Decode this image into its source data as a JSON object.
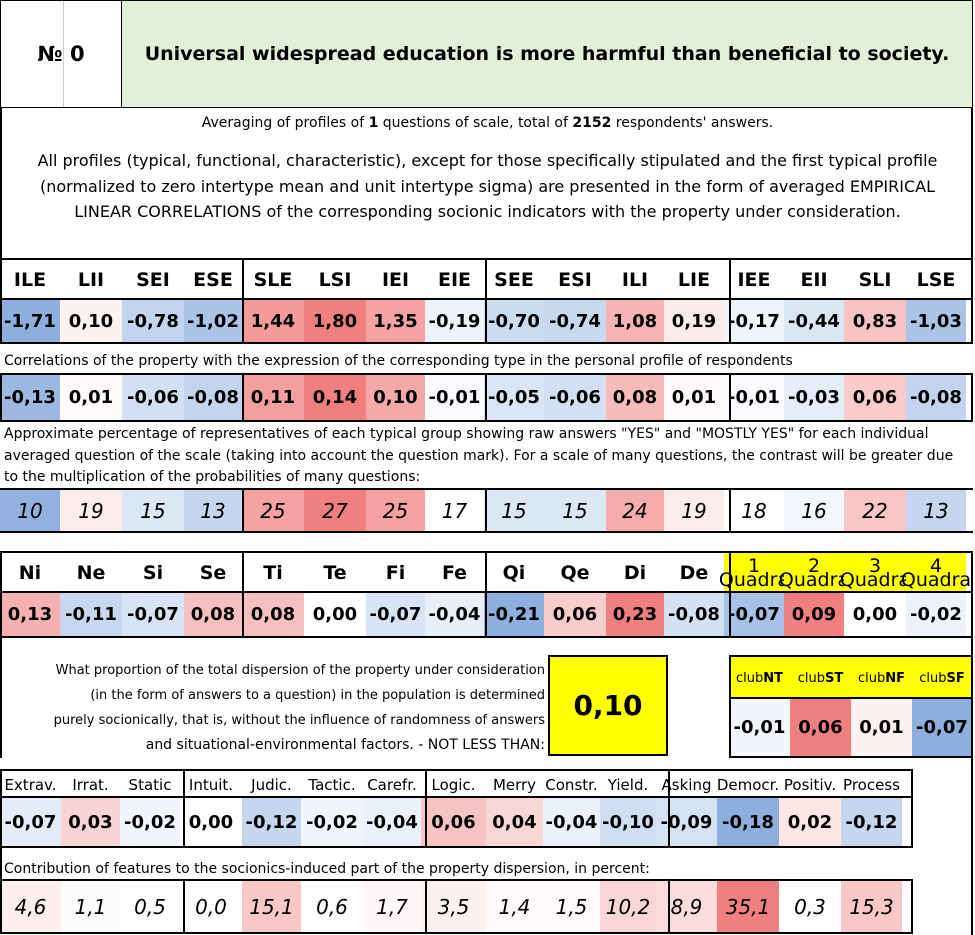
{
  "header": {
    "number_label": "№ 0",
    "title": "Universal widespread education is more harmful than beneficial to society."
  },
  "averaging": {
    "prefix": "Averaging of profiles of ",
    "questions": "1",
    "middle": " questions of scale, total of ",
    "respondents": "2152",
    "suffix": " respondents' answers."
  },
  "description": "All profiles (typical, functional, characteristic), except for those specifically stipulated and the first typical profile (normalized to zero intertype mean and unit intertype sigma) are presented in the form of averaged EMPIRICAL LINEAR CORRELATIONS of the corresponding socionic indicators with the property under consideration.",
  "types": {
    "labels": [
      "ILE",
      "LII",
      "SEI",
      "ESE",
      "SLE",
      "LSI",
      "IEI",
      "EIE",
      "SEE",
      "ESI",
      "ILI",
      "LIE",
      "IEE",
      "EII",
      "SLI",
      "LSE"
    ],
    "normalized": [
      "-1,71",
      "0,10",
      "-0,78",
      "-1,02",
      "1,44",
      "1,80",
      "1,35",
      "-0,19",
      "-0,70",
      "-0,74",
      "1,08",
      "0,19",
      "-0,17",
      "-0,44",
      "0,83",
      "-1,03"
    ],
    "normalized_colors": [
      "#8eaedd",
      "#fdf2f2",
      "#c3d5ee",
      "#abc4e8",
      "#f39b9b",
      "#f08080",
      "#f4a2a2",
      "#eef3fb",
      "#cbdbf0",
      "#c8d9ef",
      "#f6b3b3",
      "#fcebeb",
      "#f0f4fb",
      "#dbe6f5",
      "#f7c3c3",
      "#aac3e7"
    ],
    "correlation_note": "Correlations of the property with the expression of the corresponding type in the personal profile of respondents",
    "correlations": [
      "-0,13",
      "0,01",
      "-0,06",
      "-0,08",
      "0,11",
      "0,14",
      "0,10",
      "-0,01",
      "-0,05",
      "-0,06",
      "0,08",
      "0,01",
      "-0,01",
      "-0,03",
      "0,06",
      "-0,08"
    ],
    "correlation_colors": [
      "#9db9e2",
      "#fefafa",
      "#d3e0f3",
      "#c3d5ee",
      "#f49f9f",
      "#f08080",
      "#f5a8a8",
      "#f9fbfe",
      "#d9e5f5",
      "#d3e0f3",
      "#f7bbbb",
      "#fefafa",
      "#f9fbfe",
      "#e5edf8",
      "#f9cbcb",
      "#c3d5ee"
    ],
    "percent_note": "Approximate percentage of representatives of each typical group showing raw answers \"YES\" and \"MOSTLY YES\" for each individual averaged question of the scale (taking into account the question mark). For a scale of many questions, the contrast will be greater due to the multiplication of the probabilities of many questions:",
    "percents": [
      "10",
      "19",
      "15",
      "13",
      "25",
      "27",
      "25",
      "17",
      "15",
      "15",
      "24",
      "19",
      "18",
      "16",
      "22",
      "13"
    ],
    "percent_colors": [
      "#92b1de",
      "#fcecec",
      "#dce7f6",
      "#c5d6ee",
      "#f4a2a2",
      "#f08080",
      "#f4a2a2",
      "#ffffff",
      "#dce7f6",
      "#dce7f6",
      "#f5acac",
      "#fcecec",
      "#ffffff",
      "#f3f6fc",
      "#f8c6c6",
      "#c5d6ee"
    ]
  },
  "functions": {
    "labels": [
      "Ni",
      "Ne",
      "Si",
      "Se",
      "Ti",
      "Te",
      "Fi",
      "Fe",
      "Qi",
      "Qe",
      "Di",
      "De"
    ],
    "values": [
      "0,13",
      "-0,11",
      "-0,07",
      "0,08",
      "0,08",
      "0,00",
      "-0,07",
      "-0,04",
      "-0,21",
      "0,06",
      "0,23",
      "-0,08"
    ],
    "colors": [
      "#f5b1b1",
      "#c7d7ef",
      "#d8e4f5",
      "#f7c0c0",
      "#f7c0c0",
      "#ffffff",
      "#d8e4f5",
      "#e8eff9",
      "#8eaedd",
      "#f9cdcd",
      "#f08080",
      "#d4e1f3"
    ]
  },
  "quadras": {
    "labels": [
      [
        "1",
        "Quadra"
      ],
      [
        "2",
        "Quadra"
      ],
      [
        "3",
        "Quadra"
      ],
      [
        "4",
        "Quadra"
      ]
    ],
    "values": [
      "-0,07",
      "0,09",
      "0,00",
      "-0,02"
    ],
    "colors": [
      "#a7c1e6",
      "#f08080",
      "#ffffff",
      "#eef3fb"
    ],
    "header_color": "#ffff00"
  },
  "dispersion": {
    "text_lines": [
      "What proportion of the total dispersion of the property under consideration",
      "(in the form of answers to a question) in the population is determined",
      "purely socionically, that is, without the influence of randomness of answers",
      "and situational-environmental factors. - NOT LESS THAN:"
    ],
    "value": "0,10"
  },
  "clubs": {
    "labels": [
      [
        "club",
        "NT"
      ],
      [
        "club",
        "ST"
      ],
      [
        "club",
        "NF"
      ],
      [
        "club",
        "SF"
      ]
    ],
    "values": [
      "-0,01",
      "0,06",
      "0,01",
      "-0,07"
    ],
    "colors": [
      "#f2f6fc",
      "#f08080",
      "#fdf1f1",
      "#8eaedd"
    ]
  },
  "features": {
    "labels": [
      "Extrav.",
      "Irrat.",
      "Static",
      "Intuit.",
      "Judic.",
      "Tactic.",
      "Carefr.",
      "Logic.",
      "Merry",
      "Constr.",
      "Yield.",
      "Asking",
      "Democr.",
      "Positiv.",
      "Process"
    ],
    "values": [
      "-0,07",
      "0,03",
      "-0,02",
      "0,00",
      "-0,12",
      "-0,02",
      "-0,04",
      "0,06",
      "0,04",
      "-0,04",
      "-0,10",
      "-0,09",
      "-0,18",
      "0,02",
      "-0,12"
    ],
    "colors": [
      "#e4ecf8",
      "#f9d4d4",
      "#f1f5fb",
      "#ffffff",
      "#c5d6ee",
      "#f1f5fb",
      "#ebf1fa",
      "#f7c3c3",
      "#fad7d7",
      "#ebf1fa",
      "#d0deF2",
      "#d6e2f4",
      "#8eaedd",
      "#fce6e6",
      "#c5d6ee"
    ],
    "contribution_note": "Contribution of features to the socionics-induced part of the property dispersion, in percent:",
    "contributions": [
      "4,6",
      "1,1",
      "0,5",
      "0,0",
      "15,1",
      "0,6",
      "1,7",
      "3,5",
      "1,4",
      "1,5",
      "10,2",
      "8,9",
      "35,1",
      "0,3",
      "15,3"
    ],
    "contribution_colors": [
      "#fdeeee",
      "#fefbfb",
      "#fefdfd",
      "#ffffff",
      "#f8c8c8",
      "#fefcfc",
      "#fef7f7",
      "#fdf0f0",
      "#fefafa",
      "#fefafa",
      "#fad5d5",
      "#fbdcdc",
      "#f08080",
      "#fffefe",
      "#f8c7c7"
    ]
  }
}
